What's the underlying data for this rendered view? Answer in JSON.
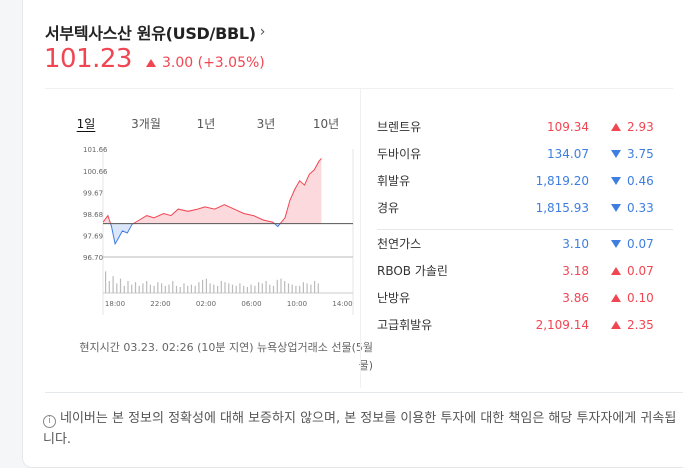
{
  "header": {
    "title": "서부텍사스산 원유(USD/BBL)",
    "chevron": "›",
    "price": "101.23",
    "change": "3.00 (+3.05%)",
    "direction": "up"
  },
  "tabs": [
    "1일",
    "3개월",
    "1년",
    "3년",
    "10년"
  ],
  "active_tab": "1일",
  "chart_data": {
    "type": "area",
    "title": "",
    "xlabel": "",
    "ylabel": "",
    "y_ticks": [
      "101.66",
      "100.66",
      "99.67",
      "98.68",
      "97.69",
      "96.70"
    ],
    "x_ticks": [
      "18:00",
      "22:00",
      "02:00",
      "06:00",
      "10:00",
      "14:00"
    ],
    "ylim": [
      96.7,
      101.66
    ],
    "baseline": 98.23,
    "series": [
      {
        "x": [
          0,
          0.2,
          0.35,
          0.5,
          0.6,
          0.8,
          1.0,
          1.2,
          1.5,
          1.8,
          2.1,
          2.5,
          2.8,
          3.1,
          3.5,
          3.9,
          4.2,
          4.6,
          5.0,
          5.4,
          5.8,
          6.2,
          6.6,
          7.0,
          7.2,
          7.5,
          7.7,
          7.9,
          8.1,
          8.3,
          8.5,
          8.7,
          8.9,
          9.0
        ],
        "y": [
          98.3,
          98.6,
          98.1,
          97.3,
          97.5,
          97.9,
          97.8,
          98.2,
          98.4,
          98.6,
          98.5,
          98.7,
          98.6,
          98.9,
          98.8,
          98.9,
          99.0,
          98.9,
          99.1,
          98.9,
          98.7,
          98.6,
          98.4,
          98.3,
          98.1,
          98.5,
          99.3,
          99.8,
          100.2,
          100.0,
          100.5,
          100.7,
          101.1,
          101.23
        ]
      }
    ],
    "up_color": "#f04652",
    "down_color": "#3e7ee0"
  },
  "footnote": "현지시간 03.23. 02:26 (10분 지연) 뉴욕상업거래소 선물(5월물)",
  "commodities": [
    [
      {
        "name": "브렌트유",
        "value": "109.34",
        "dir": "up",
        "change": "2.93"
      },
      {
        "name": "두바이유",
        "value": "134.07",
        "dir": "down",
        "change": "3.75"
      },
      {
        "name": "휘발유",
        "value": "1,819.20",
        "dir": "down",
        "change": "0.46"
      },
      {
        "name": "경유",
        "value": "1,815.93",
        "dir": "down",
        "change": "0.33"
      }
    ],
    [
      {
        "name": "천연가스",
        "value": "3.10",
        "dir": "down",
        "change": "0.07"
      },
      {
        "name": "RBOB 가솔린",
        "value": "3.18",
        "dir": "up",
        "change": "0.07"
      },
      {
        "name": "난방유",
        "value": "3.86",
        "dir": "up",
        "change": "0.10"
      },
      {
        "name": "고급휘발유",
        "value": "2,109.14",
        "dir": "up",
        "change": "2.35"
      }
    ]
  ],
  "notice": {
    "icon": "info-icon",
    "text": "네이버는 본 정보의 정확성에 대해 보증하지 않으며, 본 정보를 이용한 투자에 대한 책임은 해당 투자자에게 귀속됩니다."
  }
}
